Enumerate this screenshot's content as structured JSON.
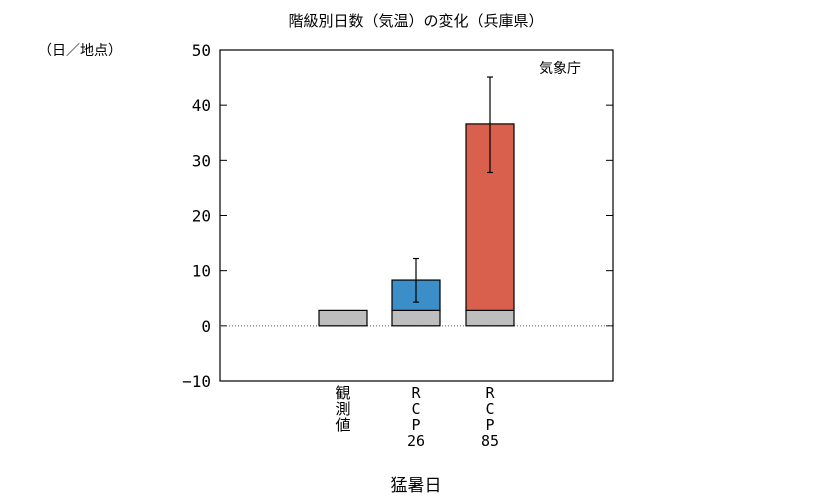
{
  "chart_data": {
    "type": "bar",
    "title": "階級別日数（気温）の変化（兵庫県）",
    "ylabel": "（日／地点）",
    "xlabel": "猛暑日",
    "source": "気象庁",
    "ylim": [
      -10,
      50
    ],
    "yticks": [
      -10,
      0,
      10,
      20,
      30,
      40,
      50
    ],
    "categories": [
      "観測値",
      "RCP26",
      "RCP85"
    ],
    "category_labels": [
      [
        "観",
        "測",
        "値"
      ],
      [
        "R",
        "C",
        "P",
        "26"
      ],
      [
        "R",
        "C",
        "P",
        "85"
      ]
    ],
    "baseline": [
      2.8,
      2.8,
      2.8
    ],
    "change": [
      0,
      5.5,
      33.8
    ],
    "totals": [
      2.8,
      8.3,
      36.6
    ],
    "error_bars": [
      null,
      [
        4.3,
        12.2
      ],
      [
        27.8,
        45.1
      ]
    ],
    "grid": false,
    "zero_line": "dotted"
  },
  "colors": {
    "baseline": "#bebebe",
    "RCP26": "#3b8ec8",
    "RCP85": "#d9604c",
    "axis": "#000000"
  }
}
